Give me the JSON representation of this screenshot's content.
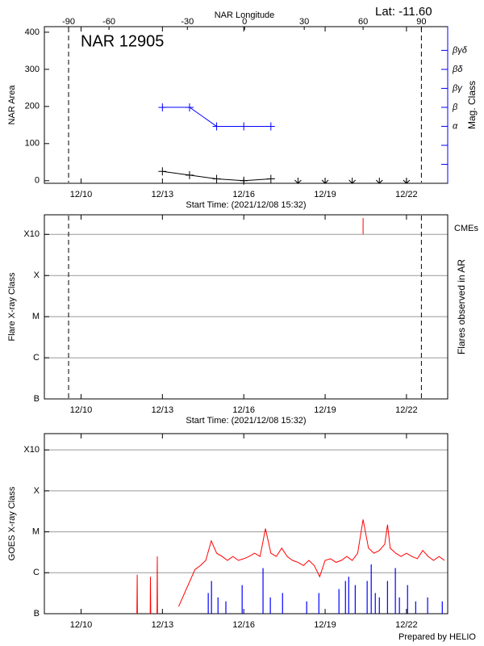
{
  "chart_data": [
    {
      "type": "line",
      "title": "NAR 12905",
      "annotation": "Lat: -11.60",
      "x2label": "NAR Longitude",
      "xlabel": "Start Time: (2021/12/08 15:32)",
      "ylabel": "NAR Area",
      "y2label": "Mag. Class",
      "y2color": "#0000ff",
      "xlim": [
        8.647,
        23.52
      ],
      "xticks": [
        {
          "value": 10,
          "label": "12/10"
        },
        {
          "value": 13,
          "label": "12/13"
        },
        {
          "value": 16,
          "label": "12/16"
        },
        {
          "value": 19,
          "label": "12/19"
        },
        {
          "value": 22,
          "label": "12/22"
        }
      ],
      "x2ticks": [
        {
          "value": 9.54,
          "label": "-90"
        },
        {
          "value": 11.03,
          "label": "-60"
        },
        {
          "value": 13.92,
          "label": "-30"
        },
        {
          "value": 16.03,
          "label": "0"
        },
        {
          "value": 18.23,
          "label": "30"
        },
        {
          "value": 20.4,
          "label": "60"
        },
        {
          "value": 22.55,
          "label": "90"
        }
      ],
      "ylim": [
        -7,
        415
      ],
      "yticks": [
        0,
        100,
        200,
        300,
        400
      ],
      "y2lim": [
        0,
        8.25
      ],
      "y2ticks": [
        {
          "value": 1,
          "label": null
        },
        {
          "value": 2,
          "label": null
        },
        {
          "value": 3,
          "label": "α"
        },
        {
          "value": 4,
          "label": "β"
        },
        {
          "value": 5,
          "label": "βγ"
        },
        {
          "value": 6,
          "label": "βδ"
        },
        {
          "value": 7,
          "label": "βγδ"
        }
      ],
      "limb_lines": true,
      "series": [
        {
          "color": "#000000",
          "x": [
            13,
            14,
            15,
            16,
            17
          ],
          "values": [
            25,
            15,
            5,
            0,
            5
          ]
        },
        {
          "color": "#0000ff",
          "axis": "y2",
          "x": [
            13,
            14,
            15,
            16,
            17
          ],
          "values": [
            4,
            4,
            3,
            3,
            3
          ]
        }
      ],
      "no_data_x": [
        18,
        19,
        20,
        21,
        22
      ]
    },
    {
      "type": "line",
      "xlabel": "Start Time: (2021/12/08 15:32)",
      "ylabel": "Flare X-ray Class",
      "y2label": "Flares observed in AR",
      "xlim": [
        8.647,
        23.52
      ],
      "xticks": [
        {
          "value": 10,
          "label": "12/10"
        },
        {
          "value": 13,
          "label": "12/13"
        },
        {
          "value": 16,
          "label": "12/16"
        },
        {
          "value": 19,
          "label": "12/19"
        },
        {
          "value": 22,
          "label": "12/22"
        }
      ],
      "ylim": [
        1e-07,
        0.003
      ],
      "log_scale": true,
      "grid": true,
      "yticks": [
        {
          "value": 1e-07,
          "label": "B"
        },
        {
          "value": 1e-06,
          "label": "C"
        },
        {
          "value": 1e-05,
          "label": "M"
        },
        {
          "value": 0.0001,
          "label": "X"
        },
        {
          "value": 0.001,
          "label": "X10"
        }
      ],
      "limb_lines": true,
      "series": [
        {
          "name": "CMEs",
          "color": "#ff0000",
          "style": "event",
          "x": [
            20.4
          ]
        }
      ]
    },
    {
      "type": "line",
      "ylabel": "GOES X-ray Class",
      "xlim": [
        8.647,
        23.52
      ],
      "xticks": [
        {
          "value": 10,
          "label": "12/10"
        },
        {
          "value": 13,
          "label": "12/13"
        },
        {
          "value": 16,
          "label": "12/16"
        },
        {
          "value": 19,
          "label": "12/19"
        },
        {
          "value": 22,
          "label": "12/22"
        }
      ],
      "ylim": [
        1e-07,
        0.0025
      ],
      "log_scale": true,
      "grid": true,
      "yticks": [
        {
          "value": 1e-07,
          "label": "B"
        },
        {
          "value": 1e-06,
          "label": "C"
        },
        {
          "value": 1e-05,
          "label": "M"
        },
        {
          "value": 0.0001,
          "label": "X"
        },
        {
          "value": 0.001,
          "label": "X10"
        }
      ],
      "series": [
        {
          "color": "#ff0000",
          "x": [
            12.06,
            12.07,
            12.08,
            12.3,
            12.55,
            12.56,
            12.57,
            12.7,
            12.8,
            12.81,
            12.82,
            13.2,
            13.6,
            13.8,
            14.0,
            14.2,
            14.4,
            14.6,
            14.8,
            15.0,
            15.2,
            15.4,
            15.6,
            15.8,
            16.0,
            16.2,
            16.4,
            16.6,
            16.8,
            17.0,
            17.2,
            17.4,
            17.6,
            17.8,
            18.0,
            18.2,
            18.4,
            18.6,
            18.8,
            19.0,
            19.2,
            19.4,
            19.6,
            19.8,
            20.0,
            20.2,
            20.4,
            20.6,
            20.8,
            21.0,
            21.2,
            21.3,
            21.4,
            21.6,
            21.8,
            22.0,
            22.2,
            22.4,
            22.6,
            22.8,
            23.0,
            23.2,
            23.4
          ],
          "values": [
            1e-07,
            9e-07,
            1e-07,
            null,
            1e-07,
            8e-07,
            1e-07,
            null,
            1e-07,
            2.5e-06,
            1e-07,
            null,
            1.5e-07,
            3e-07,
            6e-07,
            1.2e-06,
            1.5e-06,
            2e-06,
            6e-06,
            3e-06,
            2.5e-06,
            2e-06,
            2.5e-06,
            2e-06,
            2.2e-06,
            2.5e-06,
            3e-06,
            2.5e-06,
            1.2e-05,
            3e-06,
            2.5e-06,
            4e-06,
            2.5e-06,
            2e-06,
            1.8e-06,
            1.5e-06,
            2e-06,
            1.5e-06,
            8e-07,
            2e-06,
            2.2e-06,
            1.8e-06,
            2e-06,
            2.5e-06,
            2e-06,
            3e-06,
            2e-05,
            4e-06,
            3e-06,
            3.5e-06,
            5e-06,
            1.5e-05,
            4e-06,
            3e-06,
            2.5e-06,
            3e-06,
            2.5e-06,
            2.2e-06,
            3.5e-06,
            2.5e-06,
            2e-06,
            2.5e-06,
            2e-06
          ]
        },
        {
          "color": "#0000ff",
          "style": "spikes",
          "x": [
            14.69,
            14.81,
            15.05,
            15.34,
            15.94,
            16.71,
            16.98,
            17.43,
            18.32,
            18.77,
            19.51,
            19.75,
            19.87,
            20.11,
            20.55,
            20.7,
            20.85,
            21.0,
            21.3,
            21.59,
            21.74,
            22.04,
            22.34,
            22.78,
            23.32
          ],
          "values": [
            3.2e-07,
            6.3e-07,
            2.5e-07,
            2e-07,
            5e-07,
            1.3e-06,
            2.5e-07,
            3.2e-07,
            2e-07,
            3.2e-07,
            4e-07,
            6.3e-07,
            8e-07,
            5e-07,
            6.3e-07,
            1.6e-06,
            3.2e-07,
            2.5e-07,
            6.3e-07,
            1.3e-06,
            2.5e-07,
            5e-07,
            2e-07,
            2.5e-07,
            2e-07
          ]
        }
      ]
    }
  ],
  "footer": "Prepared by HELIO"
}
